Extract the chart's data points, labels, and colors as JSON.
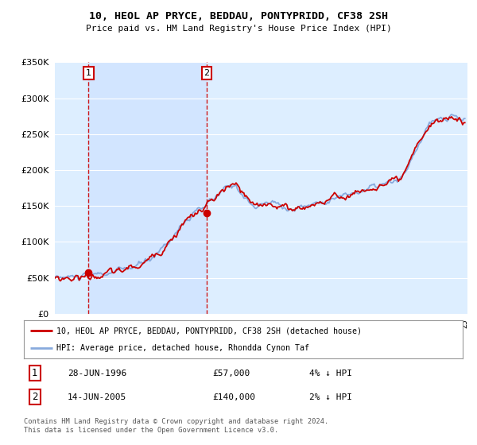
{
  "title": "10, HEOL AP PRYCE, BEDDAU, PONTYPRIDD, CF38 2SH",
  "subtitle": "Price paid vs. HM Land Registry's House Price Index (HPI)",
  "legend_line1": "10, HEOL AP PRYCE, BEDDAU, PONTYPRIDD, CF38 2SH (detached house)",
  "legend_line2": "HPI: Average price, detached house, Rhondda Cynon Taf",
  "annotation1_text": "28-JUN-1996",
  "annotation1_price": "£57,000",
  "annotation1_pct": "4% ↓ HPI",
  "annotation2_text": "14-JUN-2005",
  "annotation2_price": "£140,000",
  "annotation2_pct": "2% ↓ HPI",
  "footer": "Contains HM Land Registry data © Crown copyright and database right 2024.\nThis data is licensed under the Open Government Licence v3.0.",
  "price_color": "#cc0000",
  "hpi_color": "#88aadd",
  "ylim": [
    0,
    350000
  ],
  "yticks": [
    0,
    50000,
    100000,
    150000,
    200000,
    250000,
    300000,
    350000
  ],
  "plot_bg": "#ddeeff",
  "sale1_year": 1996.5,
  "sale1_price": 57000,
  "sale2_year": 2005.45,
  "sale2_price": 140000
}
